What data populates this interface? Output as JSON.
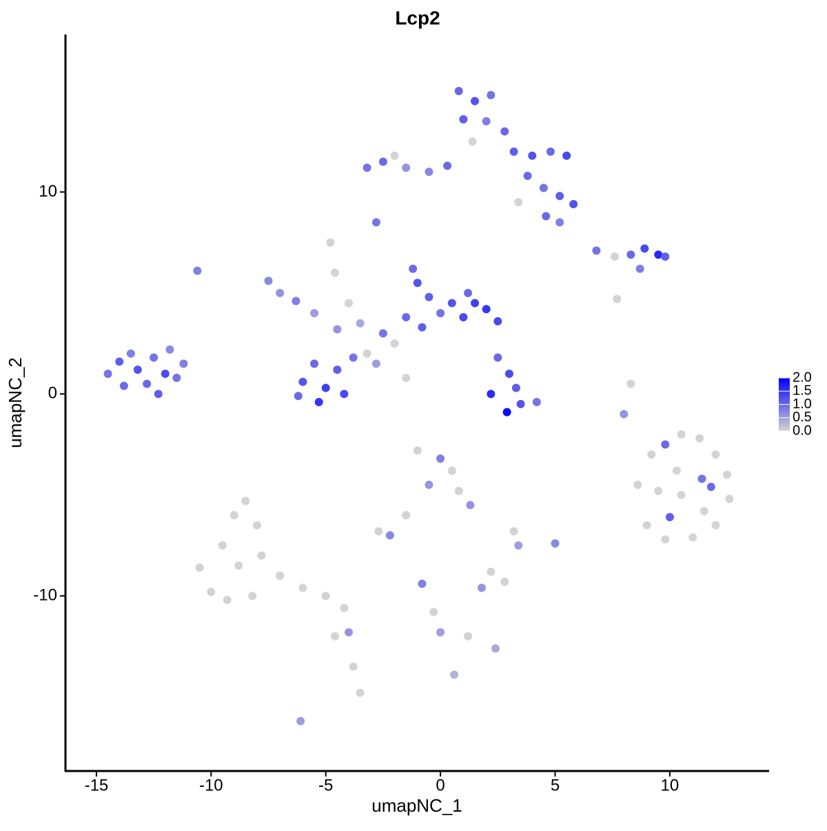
{
  "chart_data": {
    "type": "scatter",
    "title": "Lcp2",
    "x_label": "umapNC_1",
    "y_label": "umapNC_2",
    "xlim": [
      -16.35,
      14.3
    ],
    "ylim": [
      -18.67,
      17.8
    ],
    "xticks": [
      -15,
      -10,
      -5,
      0,
      5,
      10
    ],
    "yticks": [
      -10,
      0,
      10
    ],
    "low_color": "#d3d3d3",
    "high_color": "#0000ff",
    "colorbar_lim": [
      0,
      2.0
    ],
    "colorbar_ticks": [
      {
        "value": 0,
        "label": "0.0"
      },
      {
        "value": 0.5,
        "label": "0.5"
      },
      {
        "value": 1,
        "label": "1.0"
      },
      {
        "value": 1.5,
        "label": "1.5"
      },
      {
        "value": 2,
        "label": "2.0"
      }
    ],
    "x": [
      -14.5,
      -14.0,
      -13.5,
      -13.2,
      -12.8,
      -12.5,
      -12.0,
      -11.8,
      -11.5,
      -13.8,
      -12.3,
      -11.2,
      -6.0,
      -5.5,
      -5.0,
      -4.5,
      -4.2,
      -5.3,
      -3.8,
      -6.2,
      -7.5,
      -7.0,
      -6.3,
      -5.5,
      -4.5,
      -4.8,
      -4.6,
      -4.0,
      -3.5,
      -3.2,
      -2.8,
      -1.5,
      -2.5,
      -1.5,
      -1.0,
      -0.5,
      0.0,
      -1.2,
      0.5,
      1.0,
      1.5,
      2.0,
      2.5,
      1.2,
      -2.0,
      -0.8,
      0.8,
      1.5,
      2.2,
      1.0,
      2.0,
      2.8,
      1.4,
      3.2,
      4.0,
      4.8,
      5.5,
      3.8,
      4.5,
      5.2,
      5.8,
      4.6,
      5.2,
      0.3,
      -0.5,
      -1.5,
      -2.5,
      -3.2,
      -2.0,
      3.4,
      -2.8,
      6.8,
      7.6,
      8.3,
      8.9,
      9.5,
      9.8,
      8.7,
      7.7,
      2.5,
      3.0,
      2.2,
      2.9,
      3.5,
      4.2,
      3.3,
      -10.6,
      8.6,
      9.2,
      9.8,
      10.5,
      11.3,
      12.0,
      12.5,
      12.6,
      12.0,
      11.0,
      9.8,
      9.0,
      9.5,
      10.5,
      11.4,
      10.3,
      11.5,
      10.0,
      8.3,
      8.0,
      11.8,
      -10.5,
      -10.0,
      -9.5,
      -9.0,
      -8.5,
      -8.0,
      -7.8,
      -8.8,
      -9.3,
      -8.2,
      -7.0,
      -6.0,
      -5.0,
      -4.2,
      -4.6,
      -3.8,
      -3.5,
      -4.0,
      -6.1,
      -1.0,
      0.0,
      0.5,
      -0.5,
      0.8,
      1.3,
      -1.5,
      -2.7,
      -2.2,
      2.2,
      2.8,
      1.8,
      -0.8,
      -0.3,
      0.0,
      1.2,
      2.4,
      3.2,
      5.0,
      3.4,
      0.6
    ],
    "y": [
      1.0,
      1.6,
      2.0,
      1.2,
      0.5,
      1.8,
      1.0,
      2.2,
      0.8,
      0.4,
      0.0,
      1.5,
      0.6,
      1.5,
      0.3,
      1.2,
      0.0,
      -0.4,
      1.8,
      -0.1,
      5.6,
      5.0,
      4.6,
      4.0,
      3.2,
      7.5,
      6.0,
      4.5,
      3.5,
      2.0,
      1.5,
      0.8,
      3.0,
      3.8,
      5.5,
      4.8,
      4.0,
      6.2,
      4.5,
      3.8,
      4.5,
      4.2,
      3.6,
      5.0,
      2.5,
      3.3,
      15.0,
      14.5,
      14.8,
      13.6,
      13.5,
      13.0,
      12.5,
      12.0,
      11.8,
      12.0,
      11.8,
      10.8,
      10.2,
      9.8,
      9.4,
      8.8,
      8.5,
      11.3,
      11.0,
      11.2,
      11.5,
      11.2,
      11.8,
      9.5,
      8.5,
      7.1,
      6.8,
      6.9,
      7.2,
      6.9,
      6.8,
      6.2,
      4.7,
      1.8,
      1.0,
      0.0,
      -0.9,
      -0.5,
      -0.4,
      0.3,
      6.1,
      -4.5,
      -3.0,
      -2.5,
      -2.0,
      -2.2,
      -3.0,
      -4.0,
      -5.2,
      -6.5,
      -7.1,
      -7.2,
      -6.5,
      -4.8,
      -5.0,
      -4.2,
      -3.8,
      -5.8,
      -6.1,
      0.5,
      -1.0,
      -4.6,
      -8.6,
      -9.8,
      -7.5,
      -6.0,
      -5.3,
      -6.5,
      -8.0,
      -8.5,
      -10.2,
      -10.0,
      -9.0,
      -9.6,
      -10.0,
      -10.6,
      -12.0,
      -13.5,
      -14.8,
      -11.8,
      -16.2,
      -2.8,
      -3.2,
      -3.8,
      -4.5,
      -4.8,
      -5.5,
      -6.0,
      -6.8,
      -7.0,
      -8.8,
      -9.3,
      -9.6,
      -9.4,
      -10.8,
      -11.8,
      -12.0,
      -12.6,
      -6.8,
      -7.4,
      -7.5,
      -13.9
    ],
    "values": [
      0.9,
      1.1,
      0.8,
      1.2,
      1.0,
      0.9,
      1.3,
      0.7,
      0.9,
      1.0,
      1.1,
      0.8,
      1.2,
      1.0,
      1.4,
      1.1,
      1.3,
      1.5,
      0.9,
      1.0,
      0.7,
      0.6,
      0.8,
      0.5,
      0.6,
      0,
      0,
      0,
      0.4,
      0,
      0.5,
      0,
      0.9,
      1.0,
      1.2,
      1.1,
      0.9,
      1.0,
      1.2,
      1.3,
      1.4,
      1.5,
      1.3,
      1.0,
      0,
      1.1,
      1.0,
      1.2,
      0.9,
      1.1,
      0.8,
      1.0,
      0,
      1.1,
      1.2,
      1.0,
      1.3,
      1.0,
      0.9,
      1.1,
      1.2,
      1.0,
      0.8,
      1.0,
      0.7,
      0.6,
      1.0,
      0.9,
      0,
      0,
      0.9,
      0.9,
      0,
      1.0,
      1.3,
      1.6,
      1.1,
      0.8,
      0,
      1.0,
      1.3,
      1.6,
      1.9,
      1.2,
      0.9,
      1.1,
      0.8,
      0,
      0,
      1.0,
      0,
      0,
      0,
      0,
      0,
      0,
      0,
      0,
      0,
      0,
      0,
      0.9,
      0,
      0,
      1.1,
      0,
      0.6,
      1.0,
      0,
      0,
      0,
      0,
      0,
      0,
      0,
      0,
      0,
      0,
      0,
      0,
      0,
      0,
      0,
      0,
      0,
      0.6,
      0.5,
      0,
      0.8,
      0,
      0.6,
      0,
      0.6,
      0,
      0,
      0.7,
      0,
      0,
      0.6,
      0.8,
      0,
      0.5,
      0,
      0.4,
      0,
      0.7,
      0.5,
      0.3
    ]
  }
}
